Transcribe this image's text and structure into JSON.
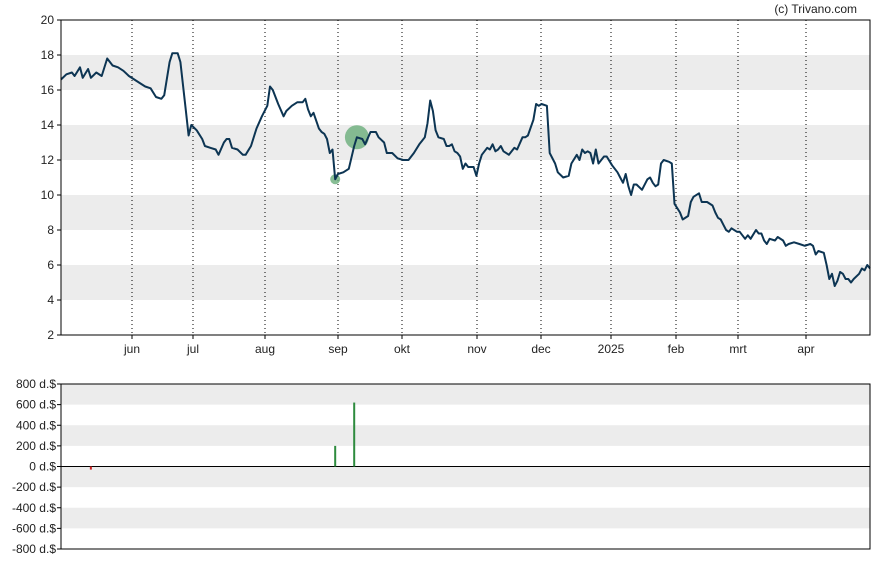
{
  "credit": "(c) Trivano.com",
  "colors": {
    "line": "#0d3553",
    "band": "#ececec",
    "grid_dotted": "#000000",
    "axis": "#000000",
    "marker": "#6aae7b",
    "volume_positive": "#2e8b3e",
    "volume_negative": "#cc2222"
  },
  "chart_data": [
    {
      "type": "line",
      "title": "",
      "ylim": [
        2,
        20
      ],
      "yticks": [
        "2",
        "4",
        "6",
        "8",
        "10",
        "12",
        "14",
        "16",
        "18",
        "20"
      ],
      "month_ticks": [
        "jun",
        "jul",
        "aug",
        "sep",
        "okt",
        "nov",
        "dec",
        "2025",
        "feb",
        "mrt",
        "apr"
      ],
      "grid": "alternating horizontal bands, dotted vertical lines at month starts",
      "series": [
        {
          "values": [
            [
              0,
              16.6
            ],
            [
              2,
              16.9
            ],
            [
              4,
              17.0
            ],
            [
              5,
              16.8
            ],
            [
              7,
              17.3
            ],
            [
              8,
              16.7
            ],
            [
              10,
              17.2
            ],
            [
              11,
              16.7
            ],
            [
              13,
              17.0
            ],
            [
              15,
              16.8
            ],
            [
              17,
              17.8
            ],
            [
              19,
              17.4
            ],
            [
              21,
              17.3
            ],
            [
              23,
              17.1
            ],
            [
              25,
              16.8
            ],
            [
              27,
              16.6
            ],
            [
              29,
              16.4
            ],
            [
              31,
              16.2
            ],
            [
              33,
              16.1
            ],
            [
              35,
              15.6
            ],
            [
              37,
              15.5
            ],
            [
              38,
              15.7
            ],
            [
              40,
              17.6
            ],
            [
              41,
              18.1
            ],
            [
              43,
              18.1
            ],
            [
              44,
              17.6
            ],
            [
              46,
              14.8
            ],
            [
              47,
              13.4
            ],
            [
              48,
              14.0
            ],
            [
              50,
              13.7
            ],
            [
              52,
              13.2
            ],
            [
              53,
              12.8
            ],
            [
              55,
              12.7
            ],
            [
              57,
              12.6
            ],
            [
              58,
              12.3
            ],
            [
              60,
              13.0
            ],
            [
              61,
              13.2
            ],
            [
              62,
              13.2
            ],
            [
              63,
              12.7
            ],
            [
              65,
              12.6
            ],
            [
              67,
              12.3
            ],
            [
              68,
              12.3
            ],
            [
              70,
              12.8
            ],
            [
              72,
              13.8
            ],
            [
              74,
              14.5
            ],
            [
              76,
              15.1
            ],
            [
              77,
              16.2
            ],
            [
              78,
              16.0
            ],
            [
              80,
              15.2
            ],
            [
              82,
              14.5
            ],
            [
              83,
              14.8
            ],
            [
              85,
              15.1
            ],
            [
              87,
              15.3
            ],
            [
              89,
              15.3
            ],
            [
              90,
              15.5
            ],
            [
              91,
              14.9
            ],
            [
              92,
              14.5
            ],
            [
              93,
              14.7
            ],
            [
              95,
              13.8
            ],
            [
              96,
              13.6
            ],
            [
              97,
              13.5
            ],
            [
              98,
              13.2
            ],
            [
              99,
              12.4
            ],
            [
              100,
              12.6
            ],
            [
              101,
              10.9
            ],
            [
              102,
              11.2
            ],
            [
              104,
              11.3
            ],
            [
              106,
              11.5
            ],
            [
              108,
              12.8
            ],
            [
              109,
              13.3
            ],
            [
              111,
              13.2
            ],
            [
              112,
              12.9
            ],
            [
              114,
              13.6
            ],
            [
              116,
              13.6
            ],
            [
              117,
              13.3
            ],
            [
              119,
              13.0
            ],
            [
              120,
              12.4
            ],
            [
              122,
              12.4
            ],
            [
              124,
              12.1
            ],
            [
              126,
              12.0
            ],
            [
              128,
              12.0
            ],
            [
              130,
              12.4
            ],
            [
              132,
              12.9
            ],
            [
              133,
              13.1
            ],
            [
              134,
              13.3
            ],
            [
              135,
              14.1
            ],
            [
              136,
              15.4
            ],
            [
              137,
              14.8
            ],
            [
              138,
              13.7
            ],
            [
              139,
              13.3
            ],
            [
              141,
              13.2
            ],
            [
              142,
              12.8
            ],
            [
              143,
              12.8
            ],
            [
              144,
              12.9
            ],
            [
              145,
              12.5
            ],
            [
              146,
              12.4
            ],
            [
              147,
              12.2
            ],
            [
              148,
              11.5
            ],
            [
              149,
              11.8
            ],
            [
              150,
              11.6
            ],
            [
              152,
              11.6
            ],
            [
              153,
              11.1
            ],
            [
              154,
              11.8
            ],
            [
              155,
              12.3
            ],
            [
              157,
              12.7
            ],
            [
              158,
              12.6
            ],
            [
              159,
              12.9
            ],
            [
              160,
              12.5
            ],
            [
              161,
              12.6
            ],
            [
              162,
              12.8
            ],
            [
              163,
              12.5
            ],
            [
              165,
              12.3
            ],
            [
              167,
              12.7
            ],
            [
              168,
              12.6
            ],
            [
              170,
              13.3
            ],
            [
              171,
              13.3
            ],
            [
              172,
              13.4
            ],
            [
              174,
              14.3
            ],
            [
              175,
              15.2
            ],
            [
              176,
              15.1
            ],
            [
              177,
              15.2
            ],
            [
              179,
              15.1
            ],
            [
              180,
              12.4
            ],
            [
              182,
              11.8
            ],
            [
              183,
              11.3
            ],
            [
              185,
              11.0
            ],
            [
              187,
              11.1
            ],
            [
              188,
              11.8
            ],
            [
              190,
              12.3
            ],
            [
              191,
              12.0
            ],
            [
              192,
              12.6
            ],
            [
              193,
              12.4
            ],
            [
              194,
              12.5
            ],
            [
              195,
              12.4
            ],
            [
              196,
              11.8
            ],
            [
              197,
              12.6
            ],
            [
              198,
              11.8
            ],
            [
              200,
              12.2
            ],
            [
              201,
              12.2
            ],
            [
              203,
              11.7
            ],
            [
              205,
              11.3
            ],
            [
              206,
              11.0
            ],
            [
              207,
              10.7
            ],
            [
              208,
              11.2
            ],
            [
              209,
              10.5
            ],
            [
              210,
              10.0
            ],
            [
              211,
              10.6
            ],
            [
              212,
              10.6
            ],
            [
              214,
              10.3
            ],
            [
              216,
              10.9
            ],
            [
              217,
              11.0
            ],
            [
              218,
              10.7
            ],
            [
              219,
              10.5
            ],
            [
              220,
              10.6
            ],
            [
              221,
              11.8
            ],
            [
              222,
              12.0
            ],
            [
              224,
              11.9
            ],
            [
              225,
              11.8
            ],
            [
              226,
              9.5
            ],
            [
              228,
              9.0
            ],
            [
              229,
              8.6
            ],
            [
              231,
              8.8
            ],
            [
              232,
              9.6
            ],
            [
              233,
              9.9
            ],
            [
              235,
              10.1
            ],
            [
              236,
              9.6
            ],
            [
              237,
              9.6
            ],
            [
              238,
              9.6
            ],
            [
              240,
              9.4
            ],
            [
              241,
              9.0
            ],
            [
              242,
              8.7
            ],
            [
              243,
              8.6
            ],
            [
              244,
              8.3
            ],
            [
              245,
              8.0
            ],
            [
              246,
              7.9
            ],
            [
              247,
              8.1
            ],
            [
              249,
              7.9
            ],
            [
              250,
              7.9
            ],
            [
              251,
              7.7
            ],
            [
              252,
              7.5
            ],
            [
              253,
              7.7
            ],
            [
              254,
              7.5
            ],
            [
              256,
              8.0
            ],
            [
              257,
              7.8
            ],
            [
              258,
              7.8
            ],
            [
              259,
              7.4
            ],
            [
              260,
              7.2
            ],
            [
              261,
              7.5
            ],
            [
              263,
              7.4
            ],
            [
              264,
              7.6
            ],
            [
              266,
              7.4
            ],
            [
              267,
              7.1
            ],
            [
              268,
              7.2
            ],
            [
              270,
              7.3
            ],
            [
              272,
              7.2
            ],
            [
              274,
              7.1
            ],
            [
              276,
              7.2
            ],
            [
              277,
              7.1
            ],
            [
              278,
              6.6
            ],
            [
              279,
              6.8
            ],
            [
              281,
              6.7
            ],
            [
              282,
              6.0
            ],
            [
              283,
              5.2
            ],
            [
              284,
              5.5
            ],
            [
              285,
              4.8
            ],
            [
              286,
              5.1
            ],
            [
              287,
              5.6
            ],
            [
              288,
              5.5
            ],
            [
              289,
              5.2
            ],
            [
              290,
              5.2
            ],
            [
              291,
              5.0
            ],
            [
              292,
              5.2
            ],
            [
              294,
              5.5
            ],
            [
              295,
              5.8
            ],
            [
              296,
              5.7
            ],
            [
              297,
              6.0
            ],
            [
              298,
              5.8
            ]
          ]
        }
      ],
      "markers": [
        {
          "x": 101,
          "y": 10.9,
          "size": "small"
        },
        {
          "x": 109,
          "y": 13.3,
          "size": "large"
        }
      ]
    },
    {
      "type": "bar",
      "title": "",
      "ylim": [
        -800,
        800
      ],
      "yticks": [
        "800 d.$",
        "600 d.$",
        "400 d.$",
        "200 d.$",
        "0 d.$",
        "-200 d.$",
        "-400 d.$",
        "-600 d.$",
        "-800 d.$"
      ],
      "grid": "alternating horizontal bands",
      "bars": [
        {
          "x": 11,
          "value": -30
        },
        {
          "x": 101,
          "value": 200
        },
        {
          "x": 108,
          "value": 620
        }
      ]
    }
  ]
}
